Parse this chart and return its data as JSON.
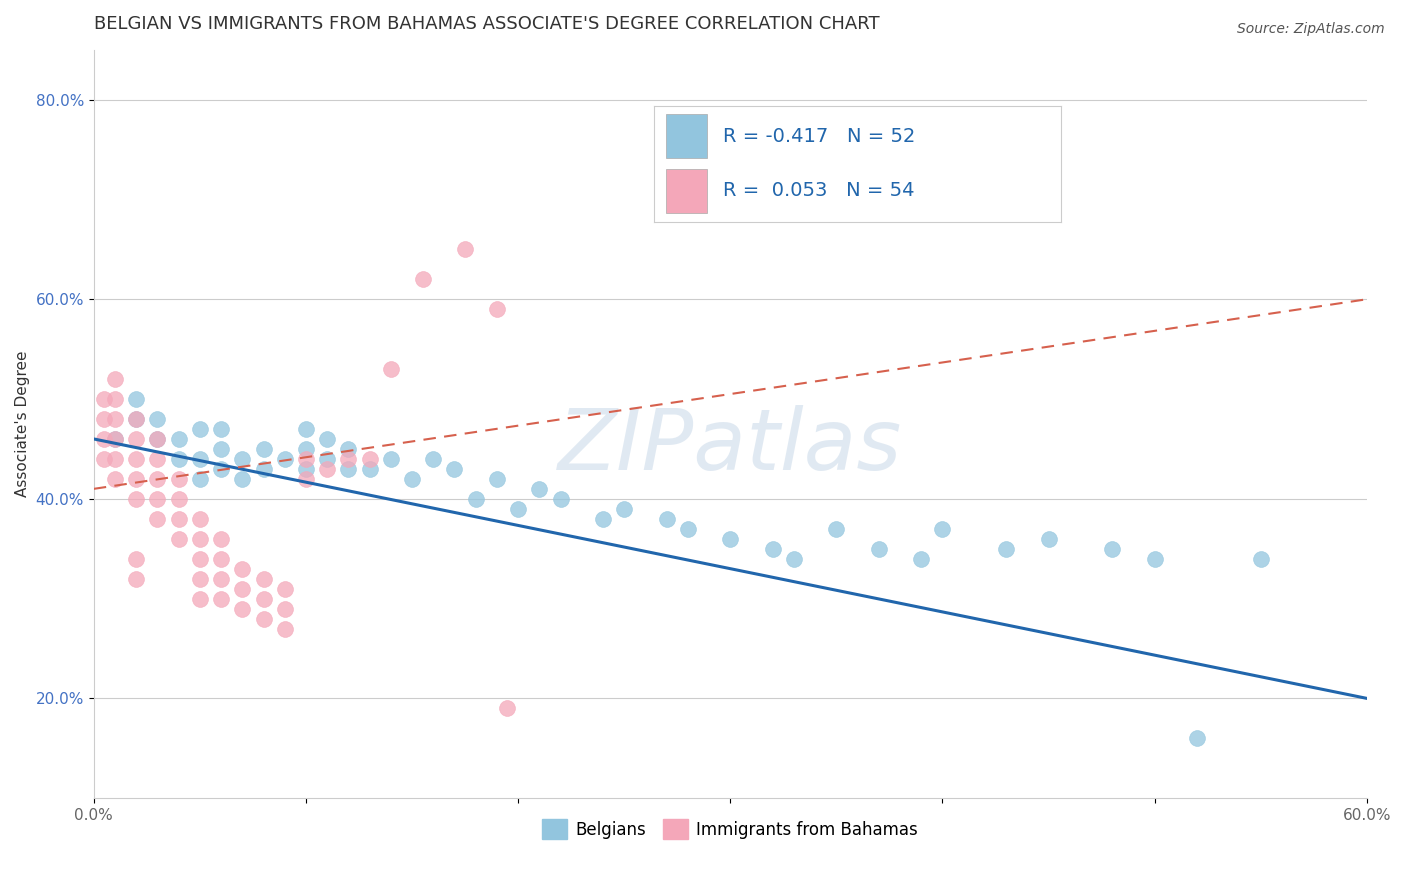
{
  "title": "BELGIAN VS IMMIGRANTS FROM BAHAMAS ASSOCIATE'S DEGREE CORRELATION CHART",
  "source": "Source: ZipAtlas.com",
  "ylabel": "Associate's Degree",
  "xlabel": "",
  "xlim": [
    0.0,
    0.6
  ],
  "ylim": [
    0.1,
    0.85
  ],
  "xtick_positions": [
    0.0,
    0.1,
    0.2,
    0.3,
    0.4,
    0.5,
    0.6
  ],
  "xticklabels": [
    "0.0%",
    "",
    "",
    "",
    "",
    "",
    "60.0%"
  ],
  "ytick_positions": [
    0.2,
    0.4,
    0.6,
    0.8
  ],
  "yticklabels": [
    "20.0%",
    "40.0%",
    "60.0%",
    "80.0%"
  ],
  "blue_color": "#92c5de",
  "pink_color": "#f4a7b9",
  "blue_line_color": "#2166ac",
  "pink_line_color": "#d6604d",
  "watermark_text": "ZIPatlas",
  "legend_blue_text": "R = -0.417   N = 52",
  "legend_pink_text": "R =  0.053   N = 54",
  "title_fontsize": 13,
  "axis_label_fontsize": 11,
  "tick_fontsize": 11,
  "legend_fontsize": 14,
  "blue_scatter_x": [
    0.01,
    0.02,
    0.02,
    0.03,
    0.03,
    0.04,
    0.04,
    0.05,
    0.05,
    0.05,
    0.06,
    0.06,
    0.06,
    0.07,
    0.07,
    0.08,
    0.08,
    0.09,
    0.1,
    0.1,
    0.1,
    0.11,
    0.11,
    0.12,
    0.12,
    0.13,
    0.14,
    0.15,
    0.16,
    0.17,
    0.18,
    0.19,
    0.2,
    0.21,
    0.22,
    0.24,
    0.25,
    0.27,
    0.28,
    0.3,
    0.32,
    0.33,
    0.35,
    0.37,
    0.39,
    0.4,
    0.43,
    0.45,
    0.48,
    0.5,
    0.52,
    0.55
  ],
  "blue_scatter_y": [
    0.46,
    0.48,
    0.5,
    0.46,
    0.48,
    0.44,
    0.46,
    0.42,
    0.44,
    0.47,
    0.43,
    0.45,
    0.47,
    0.42,
    0.44,
    0.43,
    0.45,
    0.44,
    0.45,
    0.43,
    0.47,
    0.44,
    0.46,
    0.43,
    0.45,
    0.43,
    0.44,
    0.42,
    0.44,
    0.43,
    0.4,
    0.42,
    0.39,
    0.41,
    0.4,
    0.38,
    0.39,
    0.38,
    0.37,
    0.36,
    0.35,
    0.34,
    0.37,
    0.35,
    0.34,
    0.37,
    0.35,
    0.36,
    0.35,
    0.34,
    0.16,
    0.34
  ],
  "pink_scatter_x": [
    0.005,
    0.005,
    0.005,
    0.005,
    0.01,
    0.01,
    0.01,
    0.01,
    0.01,
    0.01,
    0.02,
    0.02,
    0.02,
    0.02,
    0.02,
    0.02,
    0.02,
    0.03,
    0.03,
    0.03,
    0.03,
    0.03,
    0.04,
    0.04,
    0.04,
    0.04,
    0.05,
    0.05,
    0.05,
    0.05,
    0.05,
    0.06,
    0.06,
    0.06,
    0.06,
    0.07,
    0.07,
    0.07,
    0.08,
    0.08,
    0.08,
    0.09,
    0.09,
    0.09,
    0.1,
    0.1,
    0.11,
    0.12,
    0.13,
    0.14,
    0.155,
    0.175,
    0.19,
    0.195
  ],
  "pink_scatter_y": [
    0.44,
    0.46,
    0.48,
    0.5,
    0.42,
    0.44,
    0.46,
    0.48,
    0.5,
    0.52,
    0.4,
    0.42,
    0.44,
    0.46,
    0.48,
    0.32,
    0.34,
    0.38,
    0.4,
    0.42,
    0.44,
    0.46,
    0.36,
    0.38,
    0.4,
    0.42,
    0.3,
    0.32,
    0.34,
    0.36,
    0.38,
    0.3,
    0.32,
    0.34,
    0.36,
    0.29,
    0.31,
    0.33,
    0.28,
    0.3,
    0.32,
    0.27,
    0.29,
    0.31,
    0.44,
    0.42,
    0.43,
    0.44,
    0.44,
    0.53,
    0.62,
    0.65,
    0.59,
    0.19
  ],
  "blue_line_x0": 0.0,
  "blue_line_y0": 0.46,
  "blue_line_x1": 0.6,
  "blue_line_y1": 0.2,
  "pink_line_x0": 0.0,
  "pink_line_y0": 0.41,
  "pink_line_x1": 0.6,
  "pink_line_y1": 0.6
}
